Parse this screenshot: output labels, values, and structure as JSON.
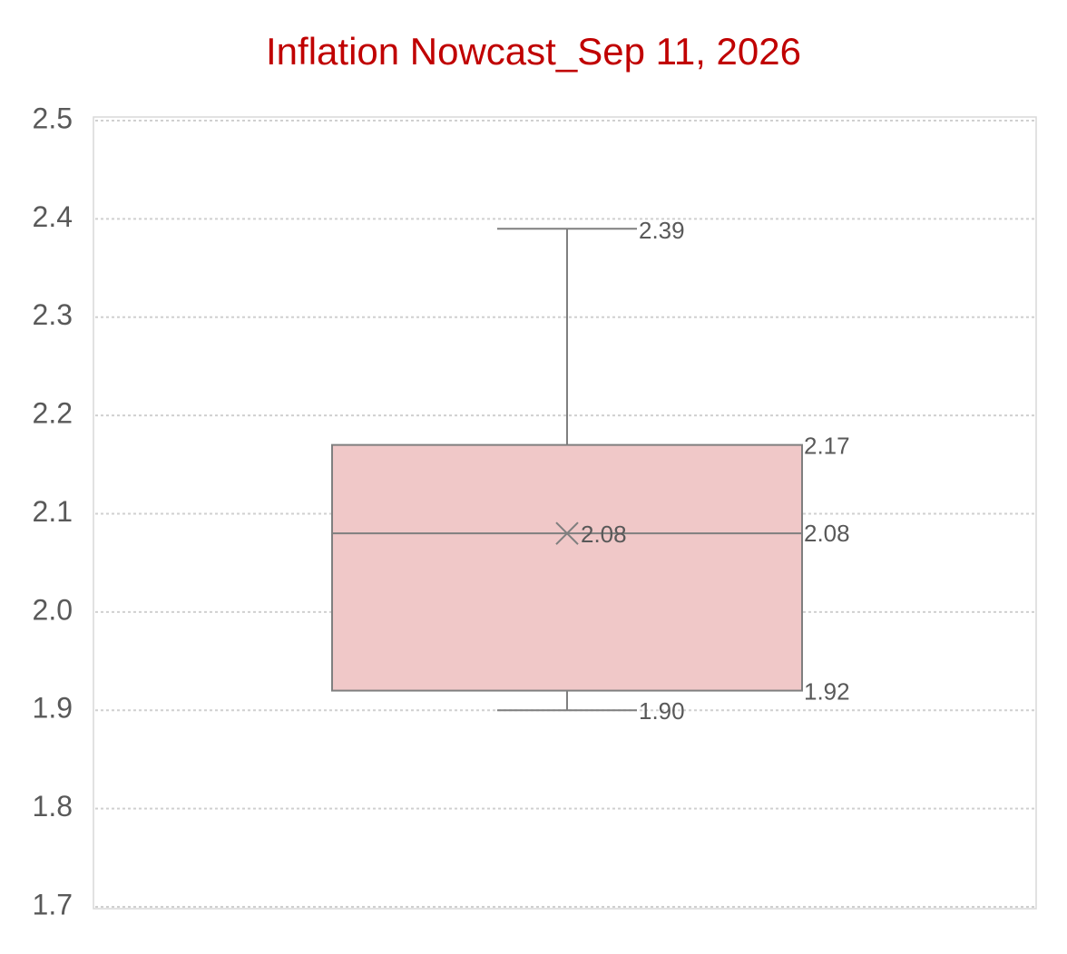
{
  "chart_data": {
    "type": "box",
    "title": "Inflation Nowcast_Sep 11, 2026",
    "ylim": [
      1.7,
      2.5
    ],
    "yticks": [
      1.7,
      1.8,
      1.9,
      {
        "value": 2,
        "label": "2.0"
      },
      2.1,
      2.2,
      2.3,
      2.4,
      2.5
    ],
    "grid": true,
    "color": "#f0c8c8",
    "values": {
      "min": 1.9,
      "q1": 1.92,
      "median": 2.08,
      "q3": 2.17,
      "max": 2.39,
      "mean": 2.08
    },
    "value_labels": {
      "min": "1.90",
      "q1": "1.92",
      "median": "2.08",
      "q3": "2.17",
      "max": "2.39",
      "mean": "2.08"
    }
  }
}
